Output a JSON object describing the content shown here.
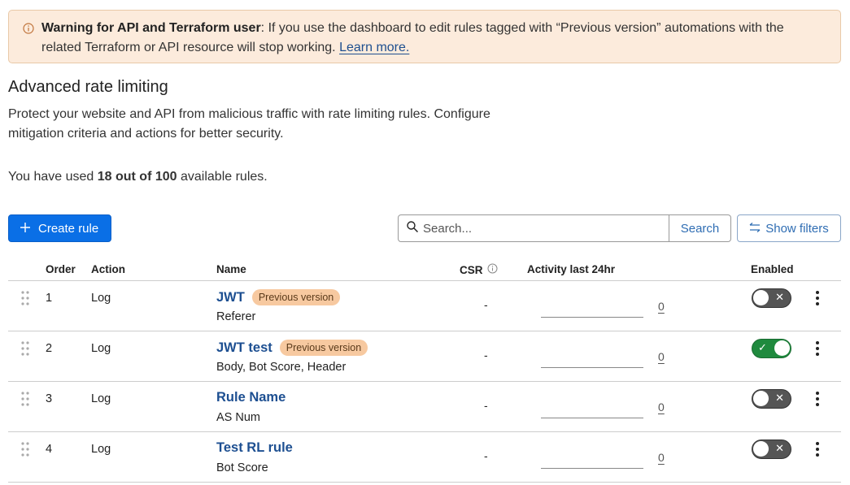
{
  "banner": {
    "icon": "info-circle-icon",
    "bold": "Warning for API and Terraform user",
    "text": ": If you use the dashboard to edit rules tagged with “Previous version” automations with the related Terraform or API resource will stop working. ",
    "link": "Learn more."
  },
  "title": "Advanced rate limiting",
  "description": "Protect your website and API from malicious traffic with rate limiting rules. Configure mitigation criteria and actions for better security.",
  "usage": {
    "prefix": "You have used ",
    "bold": "18 out of 100",
    "suffix": " available rules."
  },
  "toolbar": {
    "create_label": "Create rule",
    "search_placeholder": "Search...",
    "search_label": "Search",
    "filters_label": "Show filters"
  },
  "columns": {
    "order": "Order",
    "action": "Action",
    "name": "Name",
    "csr": "CSR",
    "activity": "Activity last 24hr",
    "enabled": "Enabled"
  },
  "rows": [
    {
      "order": "1",
      "action": "Log",
      "name": "JWT",
      "badge": "Previous version",
      "sub": "Referer",
      "csr": "-",
      "count": "0",
      "enabled": false
    },
    {
      "order": "2",
      "action": "Log",
      "name": "JWT test",
      "badge": "Previous version",
      "sub": "Body, Bot Score, Header",
      "csr": "-",
      "count": "0",
      "enabled": true
    },
    {
      "order": "3",
      "action": "Log",
      "name": "Rule Name",
      "badge": "",
      "sub": "AS Num",
      "csr": "-",
      "count": "0",
      "enabled": false
    },
    {
      "order": "4",
      "action": "Log",
      "name": "Test RL rule",
      "badge": "",
      "sub": "Bot Score",
      "csr": "-",
      "count": "0",
      "enabled": false
    }
  ],
  "colors": {
    "primary": "#0a6fe6",
    "link": "#1d4f91",
    "enabled": "#1f8a3e",
    "badge": "#f7c9a0",
    "banner": "#fcebdc"
  }
}
